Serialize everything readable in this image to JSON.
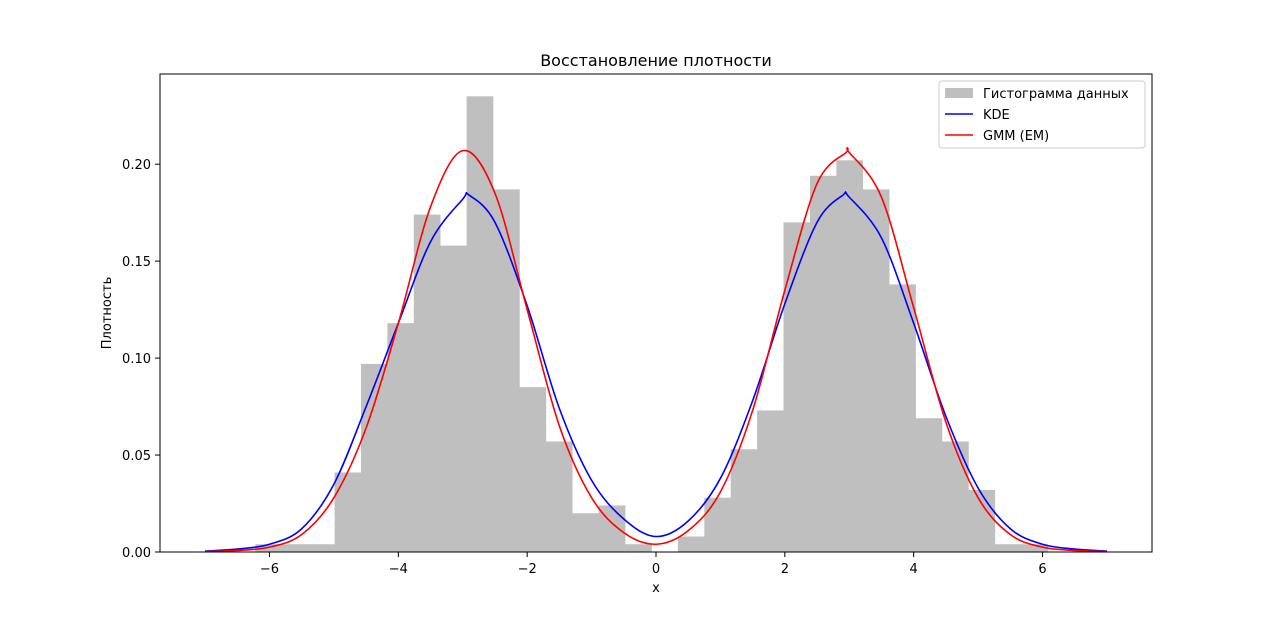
{
  "chart_data": {
    "type": "bar",
    "title": "Восстановление плотности",
    "xlabel": "x",
    "ylabel": "Плотность",
    "xlim": [
      -7.7,
      7.7
    ],
    "ylim": [
      0,
      0.2465
    ],
    "xticks": [
      {
        "value": -6,
        "label": "−6"
      },
      {
        "value": -4,
        "label": "−4"
      },
      {
        "value": -2,
        "label": "−2"
      },
      {
        "value": 0,
        "label": "0"
      },
      {
        "value": 2,
        "label": "2"
      },
      {
        "value": 4,
        "label": "4"
      },
      {
        "value": 6,
        "label": "6"
      }
    ],
    "yticks": [
      {
        "value": 0.0,
        "label": "0.00"
      },
      {
        "value": 0.05,
        "label": "0.05"
      },
      {
        "value": 0.1,
        "label": "0.10"
      },
      {
        "value": 0.15,
        "label": "0.15"
      },
      {
        "value": 0.2,
        "label": "0.20"
      }
    ],
    "grid": false,
    "legend_position": "upper-right",
    "histogram": {
      "name": "Гистограмма данных",
      "color": "#bfbfbf",
      "bins": [
        {
          "x0": -6.22,
          "x1": -5.81,
          "y": 0.004
        },
        {
          "x0": -5.81,
          "x1": -5.4,
          "y": 0.004
        },
        {
          "x0": -5.4,
          "x1": -4.99,
          "y": 0.004
        },
        {
          "x0": -4.99,
          "x1": -4.58,
          "y": 0.041
        },
        {
          "x0": -4.58,
          "x1": -4.17,
          "y": 0.097
        },
        {
          "x0": -4.17,
          "x1": -3.76,
          "y": 0.118
        },
        {
          "x0": -3.76,
          "x1": -3.35,
          "y": 0.174
        },
        {
          "x0": -3.35,
          "x1": -2.94,
          "y": 0.158
        },
        {
          "x0": -2.94,
          "x1": -2.53,
          "y": 0.235
        },
        {
          "x0": -2.53,
          "x1": -2.12,
          "y": 0.187
        },
        {
          "x0": -2.12,
          "x1": -1.71,
          "y": 0.085
        },
        {
          "x0": -1.71,
          "x1": -1.3,
          "y": 0.057
        },
        {
          "x0": -1.3,
          "x1": -0.89,
          "y": 0.02
        },
        {
          "x0": -0.89,
          "x1": -0.48,
          "y": 0.024
        },
        {
          "x0": -0.48,
          "x1": -0.07,
          "y": 0.004
        },
        {
          "x0": -0.07,
          "x1": 0.34,
          "y": 0.0
        },
        {
          "x0": 0.34,
          "x1": 0.75,
          "y": 0.008
        },
        {
          "x0": 0.75,
          "x1": 1.16,
          "y": 0.028
        },
        {
          "x0": 1.16,
          "x1": 1.57,
          "y": 0.053
        },
        {
          "x0": 1.57,
          "x1": 1.98,
          "y": 0.073
        },
        {
          "x0": 1.98,
          "x1": 2.39,
          "y": 0.17
        },
        {
          "x0": 2.39,
          "x1": 2.8,
          "y": 0.194
        },
        {
          "x0": 2.8,
          "x1": 3.21,
          "y": 0.202
        },
        {
          "x0": 3.21,
          "x1": 3.62,
          "y": 0.187
        },
        {
          "x0": 3.62,
          "x1": 4.03,
          "y": 0.138
        },
        {
          "x0": 4.03,
          "x1": 4.44,
          "y": 0.069
        },
        {
          "x0": 4.44,
          "x1": 4.85,
          "y": 0.057
        },
        {
          "x0": 4.85,
          "x1": 5.26,
          "y": 0.032
        },
        {
          "x0": 5.26,
          "x1": 5.67,
          "y": 0.004
        },
        {
          "x0": 5.67,
          "x1": 6.08,
          "y": 0.004
        }
      ]
    },
    "series": [
      {
        "name": "KDE",
        "type": "line",
        "color": "#0000ff",
        "x": [
          -7.0,
          -6.5,
          -6.0,
          -5.5,
          -5.0,
          -4.5,
          -4.0,
          -3.5,
          -3.0,
          -2.9,
          -2.5,
          -2.0,
          -1.5,
          -1.0,
          -0.5,
          0.0,
          0.5,
          1.0,
          1.5,
          2.0,
          2.5,
          2.9,
          3.0,
          3.5,
          4.0,
          4.5,
          5.0,
          5.5,
          6.0,
          6.5,
          7.0
        ],
        "y": [
          0.0005,
          0.0015,
          0.004,
          0.012,
          0.035,
          0.075,
          0.118,
          0.16,
          0.182,
          0.184,
          0.17,
          0.127,
          0.074,
          0.037,
          0.017,
          0.008,
          0.016,
          0.038,
          0.078,
          0.128,
          0.17,
          0.184,
          0.183,
          0.162,
          0.118,
          0.07,
          0.033,
          0.012,
          0.004,
          0.0015,
          0.0005
        ]
      },
      {
        "name": "GMM (EM)",
        "type": "line",
        "color": "#ff0000",
        "x": [
          -7.0,
          -6.5,
          -6.0,
          -5.5,
          -5.0,
          -4.5,
          -4.0,
          -3.5,
          -3.0,
          -2.5,
          -2.0,
          -1.5,
          -1.0,
          -0.5,
          0.0,
          0.5,
          1.0,
          1.5,
          2.0,
          2.5,
          2.95,
          3.0,
          3.5,
          4.0,
          4.5,
          5.0,
          5.5,
          6.0,
          6.5,
          7.0
        ],
        "y": [
          0.0002,
          0.0008,
          0.0025,
          0.009,
          0.028,
          0.064,
          0.118,
          0.178,
          0.207,
          0.185,
          0.125,
          0.065,
          0.028,
          0.01,
          0.004,
          0.011,
          0.031,
          0.073,
          0.135,
          0.19,
          0.206,
          0.206,
          0.183,
          0.126,
          0.067,
          0.028,
          0.009,
          0.0025,
          0.0008,
          0.0002
        ]
      }
    ],
    "legend": [
      {
        "label": "Гистограмма данных",
        "kind": "patch",
        "color": "#bfbfbf"
      },
      {
        "label": "KDE",
        "kind": "line",
        "color": "#0000ff"
      },
      {
        "label": "GMM (EM)",
        "kind": "line",
        "color": "#ff0000"
      }
    ]
  }
}
